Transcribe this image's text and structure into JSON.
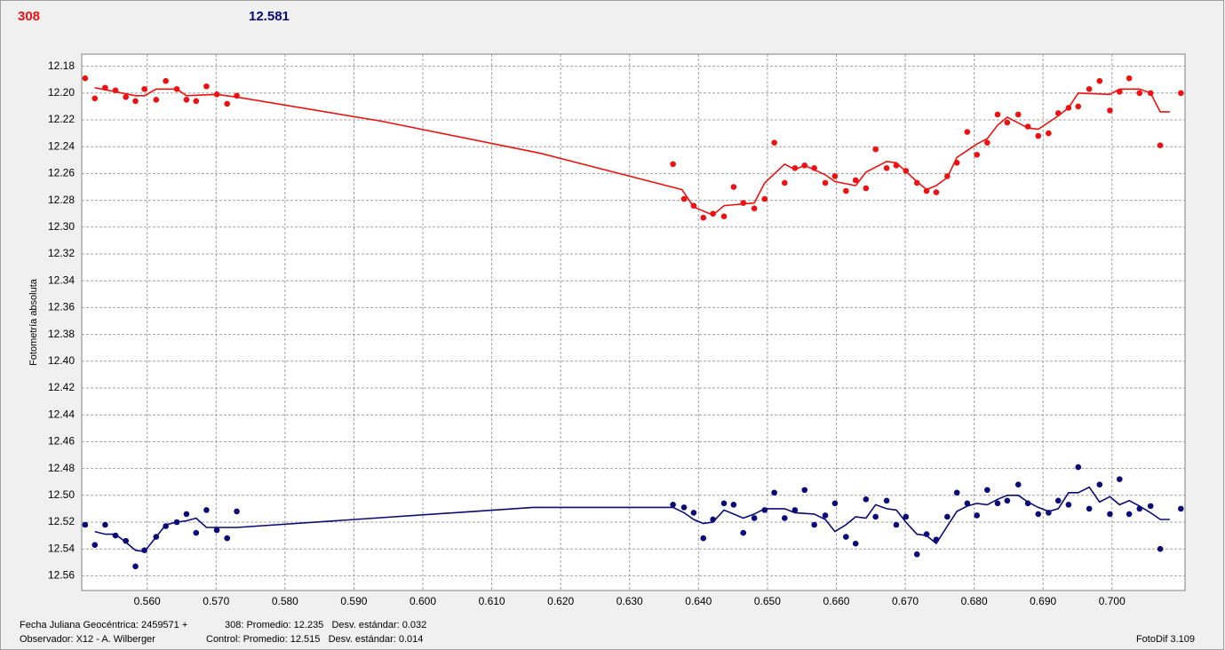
{
  "header": {
    "target": "308",
    "control": "12.581"
  },
  "footer": {
    "date": "Fecha Juliana Geocéntrica: 2459571 +",
    "observer": "Observador: X12 - A. Wilberger",
    "target_stats": "308: Promedio: 12.235   Desv. estándar: 0.032",
    "control_stats": "Control: Promedio: 12.515   Desv. estándar: 0.014",
    "software": "FotoDif 3.109"
  },
  "chart_data": {
    "type": "scatter",
    "y_label": "Fotometría absoluta",
    "xlim": [
      0.5505,
      0.7106
    ],
    "ylim": [
      12.171,
      12.571
    ],
    "y_inverted": true,
    "grid": true,
    "xticks": [
      {
        "value": 0.56,
        "label": "0.560"
      },
      {
        "value": 0.57,
        "label": "0.570"
      },
      {
        "value": 0.58,
        "label": "0.580"
      },
      {
        "value": 0.59,
        "label": "0.590"
      },
      {
        "value": 0.6,
        "label": "0.600"
      },
      {
        "value": 0.61,
        "label": "0.610"
      },
      {
        "value": 0.62,
        "label": "0.620"
      },
      {
        "value": 0.63,
        "label": "0.630"
      },
      {
        "value": 0.64,
        "label": "0.640"
      },
      {
        "value": 0.65,
        "label": "0.650"
      },
      {
        "value": 0.66,
        "label": "0.660"
      },
      {
        "value": 0.67,
        "label": "0.670"
      },
      {
        "value": 0.68,
        "label": "0.680"
      },
      {
        "value": 0.69,
        "label": "0.690"
      },
      {
        "value": 0.7,
        "label": "0.700"
      }
    ],
    "yticks": [
      12.18,
      {
        "value": 12.2,
        "label": "12.20"
      },
      12.22,
      12.24,
      12.26,
      12.28,
      {
        "value": 12.3,
        "label": "12.30"
      },
      12.32,
      12.34,
      12.36,
      12.38,
      {
        "value": 12.4,
        "label": "12.40"
      },
      12.42,
      12.44,
      12.46,
      12.48,
      {
        "value": 12.5,
        "label": "12.50"
      },
      12.52,
      12.54,
      12.56
    ],
    "x": [
      0.551,
      0.5524,
      0.5539,
      0.5554,
      0.5569,
      0.5583,
      0.5596,
      0.5613,
      0.5627,
      0.5643,
      0.5657,
      0.5671,
      0.5686,
      0.5701,
      0.5716,
      0.573,
      0.6363,
      0.6379,
      0.6393,
      0.6407,
      0.6421,
      0.6437,
      0.6451,
      0.6465,
      0.6481,
      0.6496,
      0.651,
      0.6525,
      0.654,
      0.6554,
      0.6568,
      0.6584,
      0.6598,
      0.6614,
      0.6628,
      0.6643,
      0.6657,
      0.6673,
      0.6687,
      0.6701,
      0.6717,
      0.6731,
      0.6745,
      0.6761,
      0.6775,
      0.679,
      0.6804,
      0.6819,
      0.6834,
      0.6848,
      0.6864,
      0.6878,
      0.6893,
      0.6908,
      0.6922,
      0.6937,
      0.6951,
      0.6967,
      0.6982,
      0.6997,
      0.7011,
      0.7025,
      0.704,
      0.7056,
      0.707,
      0.71
    ],
    "series": [
      {
        "color": "#ee1111",
        "values": [
          12.189,
          12.204,
          12.196,
          12.198,
          12.203,
          12.206,
          12.197,
          12.205,
          12.191,
          12.197,
          12.205,
          12.206,
          12.195,
          12.201,
          12.208,
          12.202,
          12.253,
          12.279,
          12.284,
          12.293,
          12.29,
          12.292,
          12.27,
          12.282,
          12.286,
          12.279,
          12.237,
          12.267,
          12.256,
          12.254,
          12.256,
          12.267,
          12.262,
          12.273,
          12.265,
          12.271,
          12.242,
          12.256,
          12.254,
          12.258,
          12.267,
          12.273,
          12.274,
          12.262,
          12.252,
          12.229,
          12.246,
          12.237,
          12.216,
          12.222,
          12.216,
          12.225,
          12.232,
          12.23,
          12.215,
          12.211,
          12.21,
          12.197,
          12.191,
          12.213,
          12.199,
          12.189,
          12.2,
          12.2,
          12.239,
          12.2
        ],
        "trend": {
          "x": [
            0.5524,
            0.5554,
            0.5583,
            0.5596,
            0.5613,
            0.5643,
            0.5657,
            0.5701,
            0.573,
            0.594,
            0.6171,
            0.6376,
            0.6393,
            0.6421,
            0.6437,
            0.6481,
            0.6496,
            0.6525,
            0.654,
            0.6554,
            0.6584,
            0.6598,
            0.6628,
            0.6643,
            0.6673,
            0.6687,
            0.6717,
            0.6731,
            0.6745,
            0.6761,
            0.6775,
            0.6804,
            0.6819,
            0.6834,
            0.6848,
            0.6878,
            0.6893,
            0.6922,
            0.6937,
            0.6951,
            0.6997,
            0.7011,
            0.704,
            0.7056,
            0.707,
            0.7084
          ],
          "values": [
            12.196,
            12.199,
            12.202,
            12.202,
            12.197,
            12.197,
            12.202,
            12.201,
            12.203,
            12.221,
            12.245,
            12.272,
            12.285,
            12.291,
            12.284,
            12.282,
            12.267,
            12.253,
            12.257,
            12.254,
            12.261,
            12.266,
            12.269,
            12.259,
            12.251,
            12.252,
            12.266,
            12.272,
            12.269,
            12.263,
            12.248,
            12.238,
            12.234,
            12.224,
            12.218,
            12.226,
            12.227,
            12.217,
            12.211,
            12.2,
            12.201,
            12.197,
            12.197,
            12.2,
            12.214,
            12.214
          ]
        }
      },
      {
        "color": "#0a0a78",
        "values": [
          12.522,
          12.537,
          12.522,
          12.53,
          12.534,
          12.553,
          12.541,
          12.531,
          12.523,
          12.52,
          12.514,
          12.528,
          12.511,
          12.526,
          12.532,
          12.512,
          12.507,
          12.509,
          12.513,
          12.532,
          12.518,
          12.506,
          12.507,
          12.528,
          12.517,
          12.511,
          12.498,
          12.517,
          12.511,
          12.496,
          12.522,
          12.515,
          12.506,
          12.531,
          12.536,
          12.503,
          12.516,
          12.504,
          12.522,
          12.516,
          12.544,
          12.529,
          12.533,
          12.516,
          12.498,
          12.506,
          12.515,
          12.496,
          12.506,
          12.504,
          12.492,
          12.506,
          12.514,
          12.513,
          12.504,
          12.507,
          12.479,
          12.51,
          12.492,
          12.514,
          12.488,
          12.514,
          12.51,
          12.508,
          12.54,
          12.51
        ],
        "trend": {
          "x": [
            0.5524,
            0.5539,
            0.5554,
            0.5569,
            0.5583,
            0.5596,
            0.5613,
            0.5627,
            0.5643,
            0.5657,
            0.5671,
            0.5686,
            0.5701,
            0.573,
            0.616,
            0.6363,
            0.6379,
            0.6393,
            0.6407,
            0.6421,
            0.6437,
            0.6451,
            0.6465,
            0.6481,
            0.6496,
            0.6525,
            0.654,
            0.6568,
            0.6584,
            0.6598,
            0.6614,
            0.6628,
            0.6643,
            0.6657,
            0.6673,
            0.6687,
            0.6701,
            0.6717,
            0.6731,
            0.6745,
            0.6761,
            0.6775,
            0.679,
            0.6804,
            0.6819,
            0.6834,
            0.6848,
            0.6864,
            0.6878,
            0.6893,
            0.6908,
            0.6922,
            0.6937,
            0.6951,
            0.6967,
            0.6982,
            0.6997,
            0.7011,
            0.7025,
            0.704,
            0.7056,
            0.707,
            0.7084
          ],
          "values": [
            12.527,
            12.529,
            12.529,
            12.535,
            12.541,
            12.542,
            12.531,
            12.522,
            12.52,
            12.519,
            12.517,
            12.524,
            12.524,
            12.524,
            12.509,
            12.509,
            12.513,
            12.518,
            12.521,
            12.52,
            12.511,
            12.514,
            12.517,
            12.514,
            12.51,
            12.51,
            12.513,
            12.514,
            12.518,
            12.527,
            12.522,
            12.516,
            12.517,
            12.507,
            12.51,
            12.511,
            12.52,
            12.529,
            12.53,
            12.536,
            12.523,
            12.512,
            12.508,
            12.506,
            12.507,
            12.503,
            12.5,
            12.5,
            12.505,
            12.509,
            12.512,
            12.51,
            12.498,
            12.498,
            12.494,
            12.505,
            12.501,
            12.507,
            12.504,
            12.508,
            12.513,
            12.518,
            12.518
          ]
        }
      }
    ]
  }
}
